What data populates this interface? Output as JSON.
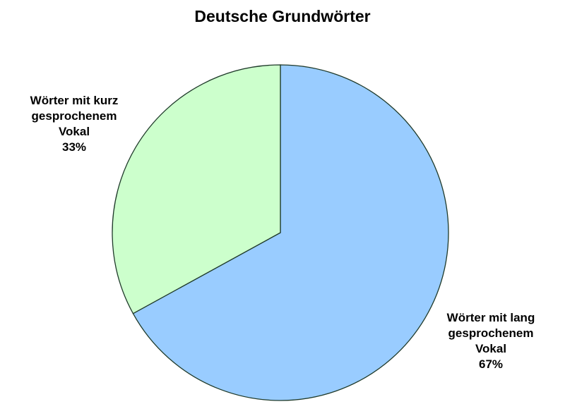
{
  "chart_data": {
    "type": "pie",
    "title": "Deutsche Grundwörter",
    "start": "top",
    "direction": "clockwise",
    "slices": [
      {
        "label_lines": [
          "Wörter mit lang",
          "gesprochenem",
          "Vokal"
        ],
        "value": 67,
        "value_label": "67%",
        "color": "#99CCFF"
      },
      {
        "label_lines": [
          "Wörter mit kurz",
          "gesprochenem",
          "Vokal"
        ],
        "value": 33,
        "value_label": "33%",
        "color": "#CCFFCC"
      }
    ],
    "outline_color": "#1f3a2a"
  }
}
